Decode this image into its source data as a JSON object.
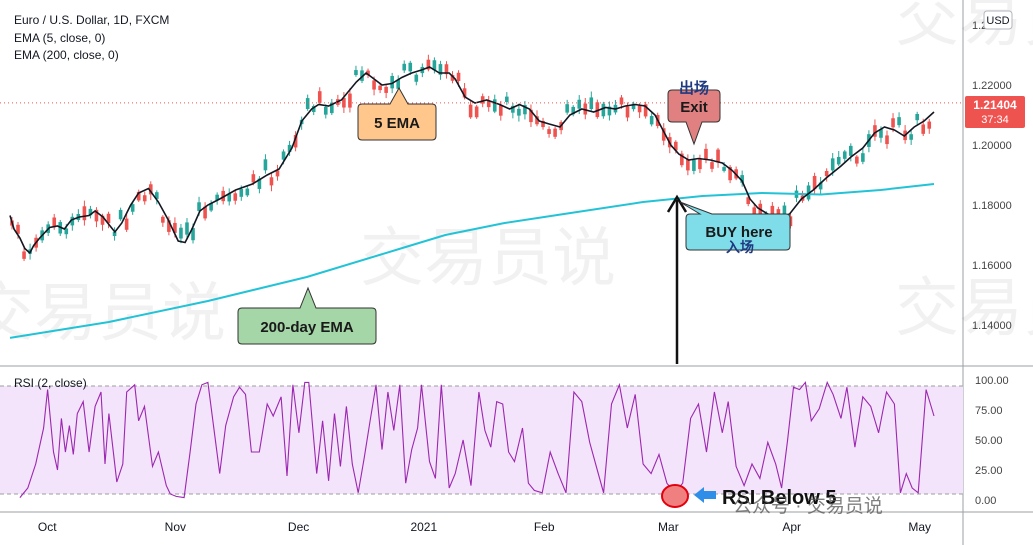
{
  "header": {
    "symbol": "Euro / U.S. Dollar, 1D, FXCM",
    "ema_fast_legend": "EMA (5, close, 0)",
    "ema_slow_legend": "EMA (200, close, 0)",
    "currency_badge": "USD"
  },
  "price_tag": {
    "value": "1.21404",
    "countdown": "37:34"
  },
  "rsi_legend": "RSI (2, close)",
  "annotations": {
    "ema5": "5 EMA",
    "ema200": "200-day EMA",
    "exit_cn": "出场",
    "exit": "Exit",
    "buy": "BUY here",
    "buy_cn": "入场",
    "rsi_below": "RSI Below 5"
  },
  "watermark": {
    "repeat": "交易员说",
    "footer": "公众号 · 交易员说"
  },
  "colors": {
    "up": "#26a69a",
    "down": "#ef5350",
    "ema5": "#131722",
    "ema200": "#22c3d6",
    "rsi": "#9c27b0",
    "rsi_band": "#f3e3fb",
    "exit_box": "#e08080",
    "buy_box": "#7fdde9",
    "ema5_box": "#ffc78c",
    "ema200_box": "#a5d6a7",
    "price_tag": "#ef5350"
  },
  "chart_data": [
    {
      "type": "candlestick",
      "title": "Euro / U.S. Dollar, 1D, FXCM",
      "x_ticks": [
        "Oct",
        "Nov",
        "Dec",
        "2021",
        "Feb",
        "Mar",
        "Apr",
        "May"
      ],
      "y_ticks": [
        "1.14000",
        "1.16000",
        "1.18000",
        "1.20000",
        "1.22000",
        "1.24000"
      ],
      "ylim": [
        1.1326,
        1.2494
      ],
      "series": [
        {
          "name": "EMA (5, close, 0)",
          "points": [
            [
              0,
              1.1765
            ],
            [
              4,
              1.172
            ],
            [
              10,
              1.169
            ],
            [
              15,
              1.1655
            ],
            [
              20,
              1.164
            ],
            [
              24,
              1.1665
            ],
            [
              30,
              1.169
            ],
            [
              40,
              1.1725
            ],
            [
              48,
              1.173
            ],
            [
              55,
              1.172
            ],
            [
              62,
              1.175
            ],
            [
              70,
              1.176
            ],
            [
              80,
              1.1765
            ],
            [
              86,
              1.178
            ],
            [
              94,
              1.176
            ],
            [
              100,
              1.1735
            ],
            [
              106,
              1.171
            ],
            [
              113,
              1.174
            ],
            [
              122,
              1.18
            ],
            [
              130,
              1.184
            ],
            [
              140,
              1.1855
            ],
            [
              150,
              1.181
            ],
            [
              160,
              1.175
            ],
            [
              170,
              1.168
            ],
            [
              177,
              1.1675
            ],
            [
              184,
              1.172
            ],
            [
              192,
              1.178
            ],
            [
              200,
              1.18
            ],
            [
              212,
              1.182
            ],
            [
              228,
              1.185
            ],
            [
              245,
              1.187
            ],
            [
              260,
              1.19
            ],
            [
              272,
              1.192
            ],
            [
              285,
              1.199
            ],
            [
              295,
              1.208
            ],
            [
              305,
              1.212
            ],
            [
              312,
              1.2135
            ],
            [
              322,
              1.213
            ],
            [
              335,
              1.215
            ],
            [
              350,
              1.221
            ],
            [
              360,
              1.224
            ],
            [
              368,
              1.222
            ],
            [
              376,
              1.22
            ],
            [
              386,
              1.2205
            ],
            [
              396,
              1.2225
            ],
            [
              406,
              1.224
            ],
            [
              416,
              1.225
            ],
            [
              424,
              1.226
            ],
            [
              434,
              1.224
            ],
            [
              444,
              1.224
            ],
            [
              450,
              1.222
            ],
            [
              460,
              1.216
            ],
            [
              470,
              1.214
            ],
            [
              482,
              1.215
            ],
            [
              495,
              1.2135
            ],
            [
              505,
              1.212
            ],
            [
              515,
              1.2135
            ],
            [
              525,
              1.212
            ],
            [
              535,
              1.208
            ],
            [
              545,
              1.207
            ],
            [
              556,
              1.206
            ],
            [
              566,
              1.21
            ],
            [
              578,
              1.212
            ],
            [
              590,
              1.211
            ],
            [
              602,
              1.2125
            ],
            [
              612,
              1.212
            ],
            [
              622,
              1.213
            ],
            [
              632,
              1.2135
            ],
            [
              642,
              1.213
            ],
            [
              652,
              1.21
            ],
            [
              660,
              1.205
            ],
            [
              668,
              1.2
            ],
            [
              676,
              1.197
            ],
            [
              686,
              1.195
            ],
            [
              696,
              1.1955
            ],
            [
              708,
              1.195
            ],
            [
              720,
              1.194
            ],
            [
              730,
              1.1915
            ],
            [
              740,
              1.188
            ],
            [
              748,
              1.182
            ],
            [
              756,
              1.179
            ],
            [
              766,
              1.177
            ],
            [
              778,
              1.1758
            ],
            [
              788,
              1.177
            ],
            [
              800,
              1.182
            ],
            [
              812,
              1.185
            ],
            [
              825,
              1.189
            ],
            [
              840,
              1.193
            ],
            [
              850,
              1.196
            ],
            [
              862,
              1.199
            ],
            [
              874,
              1.204
            ],
            [
              884,
              1.206
            ],
            [
              894,
              1.205
            ],
            [
              904,
              1.203
            ],
            [
              914,
              1.206
            ],
            [
              924,
              1.208
            ],
            [
              934,
              1.211
            ]
          ]
        },
        {
          "name": "EMA (200, close, 0)",
          "points": [
            [
              0,
              1.1357
            ],
            [
              100,
              1.141
            ],
            [
              200,
              1.148
            ],
            [
              300,
              1.156
            ],
            [
              400,
              1.166
            ],
            [
              440,
              1.17
            ],
            [
              500,
              1.174
            ],
            [
              560,
              1.177
            ],
            [
              640,
              1.181
            ],
            [
              700,
              1.183
            ],
            [
              760,
              1.184
            ],
            [
              820,
              1.1835
            ],
            [
              880,
              1.185
            ],
            [
              934,
              1.187
            ]
          ]
        }
      ],
      "last_price": 1.21404
    },
    {
      "type": "line",
      "title": "RSI (2, close)",
      "y_ticks": [
        "0.00",
        "25.00",
        "50.00",
        "75.00",
        "100.00"
      ],
      "ylim": [
        0,
        100
      ],
      "bands": [
        5,
        95
      ],
      "series": [
        {
          "name": "RSI (2, close)",
          "points": [
            [
              10,
              2
            ],
            [
              18,
              10
            ],
            [
              26,
              30
            ],
            [
              34,
              60
            ],
            [
              38,
              92
            ],
            [
              44,
              40
            ],
            [
              48,
              25
            ],
            [
              52,
              68
            ],
            [
              56,
              40
            ],
            [
              60,
              62
            ],
            [
              64,
              38
            ],
            [
              68,
              72
            ],
            [
              74,
              82
            ],
            [
              80,
              40
            ],
            [
              86,
              78
            ],
            [
              92,
              90
            ],
            [
              96,
              30
            ],
            [
              100,
              72
            ],
            [
              108,
              15
            ],
            [
              114,
              30
            ],
            [
              118,
              90
            ],
            [
              126,
              96
            ],
            [
              130,
              66
            ],
            [
              136,
              78
            ],
            [
              144,
              28
            ],
            [
              150,
              40
            ],
            [
              158,
              12
            ],
            [
              162,
              5
            ],
            [
              168,
              3
            ],
            [
              176,
              2
            ],
            [
              182,
              40
            ],
            [
              188,
              80
            ],
            [
              194,
              96
            ],
            [
              200,
              98
            ],
            [
              206,
              60
            ],
            [
              212,
              22
            ],
            [
              218,
              62
            ],
            [
              226,
              86
            ],
            [
              232,
              94
            ],
            [
              238,
              88
            ],
            [
              244,
              40
            ],
            [
              252,
              40
            ],
            [
              260,
              80
            ],
            [
              266,
              70
            ],
            [
              274,
              86
            ],
            [
              280,
              20
            ],
            [
              286,
              96
            ],
            [
              292,
              56
            ],
            [
              298,
              98
            ],
            [
              302,
              98
            ],
            [
              310,
              22
            ],
            [
              316,
              66
            ],
            [
              322,
              16
            ],
            [
              328,
              72
            ],
            [
              334,
              28
            ],
            [
              340,
              78
            ],
            [
              346,
              30
            ],
            [
              352,
              6
            ],
            [
              358,
              35
            ],
            [
              364,
              66
            ],
            [
              370,
              96
            ],
            [
              376,
              42
            ],
            [
              382,
              90
            ],
            [
              388,
              58
            ],
            [
              394,
              96
            ],
            [
              400,
              14
            ],
            [
              406,
              42
            ],
            [
              412,
              60
            ],
            [
              416,
              96
            ],
            [
              424,
              32
            ],
            [
              430,
              18
            ],
            [
              436,
              96
            ],
            [
              444,
              10
            ],
            [
              450,
              22
            ],
            [
              458,
              50
            ],
            [
              466,
              12
            ],
            [
              474,
              90
            ],
            [
              480,
              58
            ],
            [
              486,
              44
            ],
            [
              492,
              82
            ],
            [
              498,
              80
            ],
            [
              504,
              40
            ],
            [
              510,
              32
            ],
            [
              518,
              60
            ],
            [
              524,
              14
            ],
            [
              530,
              8
            ],
            [
              538,
              6
            ],
            [
              546,
              40
            ],
            [
              554,
              22
            ],
            [
              562,
              6
            ],
            [
              570,
              90
            ],
            [
              578,
              82
            ],
            [
              586,
              48
            ],
            [
              594,
              24
            ],
            [
              600,
              6
            ],
            [
              608,
              80
            ],
            [
              616,
              96
            ],
            [
              624,
              60
            ],
            [
              632,
              88
            ],
            [
              640,
              30
            ],
            [
              648,
              22
            ],
            [
              656,
              38
            ],
            [
              664,
              14
            ],
            [
              672,
              6
            ],
            [
              680,
              14
            ],
            [
              688,
              68
            ],
            [
              696,
              80
            ],
            [
              704,
              40
            ],
            [
              712,
              90
            ],
            [
              720,
              56
            ],
            [
              726,
              82
            ],
            [
              734,
              28
            ],
            [
              742,
              12
            ],
            [
              750,
              30
            ],
            [
              758,
              18
            ],
            [
              766,
              48
            ],
            [
              774,
              30
            ],
            [
              780,
              10
            ],
            [
              786,
              50
            ],
            [
              792,
              94
            ],
            [
              798,
              92
            ],
            [
              804,
              98
            ],
            [
              810,
              66
            ],
            [
              818,
              76
            ],
            [
              826,
              98
            ],
            [
              832,
              88
            ],
            [
              840,
              68
            ],
            [
              846,
              94
            ],
            [
              854,
              44
            ],
            [
              862,
              86
            ],
            [
              870,
              78
            ],
            [
              878,
              56
            ],
            [
              886,
              90
            ],
            [
              894,
              80
            ],
            [
              900,
              6
            ],
            [
              906,
              22
            ],
            [
              912,
              10
            ],
            [
              918,
              6
            ],
            [
              926,
              92
            ],
            [
              934,
              70
            ]
          ]
        }
      ],
      "annotation": "RSI Below 5"
    }
  ]
}
